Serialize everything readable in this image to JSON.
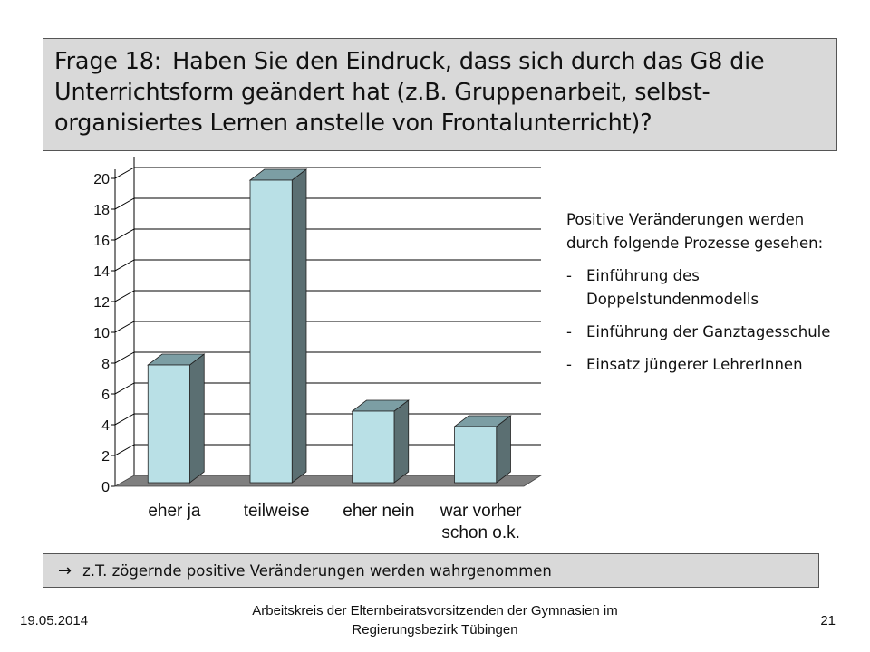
{
  "slide": {
    "question_number": "Frage 18:",
    "question_text": "Haben Sie den Eindruck, dass sich durch das G8 die Unterrichtsform geändert hat (z.B. Gruppenarbeit, selbst-organisiertes Lernen anstelle von Frontalunterricht)?",
    "side_intro": "Positive Veränderungen werden durch folgende Prozesse gesehen:",
    "side_bullets": [
      "Einführung des Doppelstundenmodells",
      "Einführung der Ganztagesschule",
      "Einsatz jüngerer LehrerInnen"
    ],
    "bullet_marker": "-",
    "conclusion_arrow": "→",
    "conclusion_text": "z.T. zögernde positive Veränderungen werden wahrgenommen"
  },
  "footer": {
    "date": "19.05.2014",
    "organization_line1": "Arbeitskreis der Elternbeiratsvorsitzenden der Gymnasien im",
    "organization_line2": "Regierungsbezirk Tübingen",
    "page_number": "21"
  },
  "chart_data": {
    "type": "bar",
    "style": "3d",
    "categories": [
      [
        "eher ja"
      ],
      [
        "teilweise"
      ],
      [
        "eher nein"
      ],
      [
        "war vorher",
        "schon o.k."
      ]
    ],
    "values": [
      8,
      20,
      5,
      4
    ],
    "ylim": [
      0,
      20
    ],
    "yticks": [
      "0",
      "2",
      "4",
      "6",
      "8",
      "10",
      "12",
      "14",
      "16",
      "18",
      "20"
    ],
    "grid": true,
    "legend": "none",
    "colors": {
      "bar_front": "#b9e0e6",
      "bar_top": "#7c9ea4",
      "bar_side": "#5b6f72",
      "floor": "#7f7f7f",
      "wall_line": "#000000"
    }
  }
}
